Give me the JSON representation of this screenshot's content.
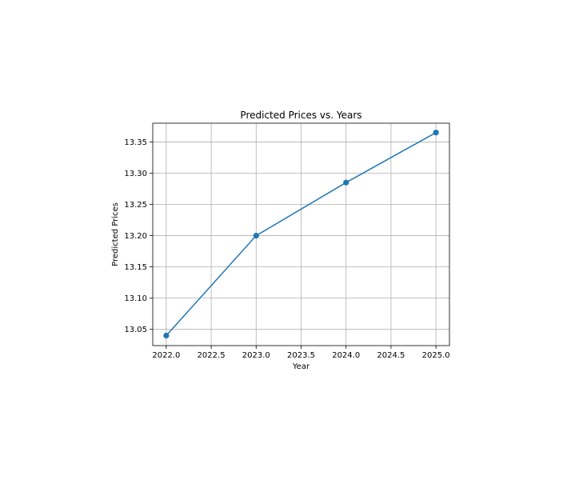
{
  "chart_data": {
    "type": "line",
    "title": "Predicted Prices vs. Years",
    "xlabel": "Year",
    "ylabel": "Predicted Prices",
    "xlim": [
      2021.85,
      2025.15
    ],
    "ylim": [
      13.024,
      13.38
    ],
    "xticks": [
      2022.0,
      2022.5,
      2023.0,
      2023.5,
      2024.0,
      2024.5,
      2025.0
    ],
    "xtick_labels": [
      "2022.0",
      "2022.5",
      "2023.0",
      "2023.5",
      "2024.0",
      "2024.5",
      "2025.0"
    ],
    "yticks": [
      13.05,
      13.1,
      13.15,
      13.2,
      13.25,
      13.3,
      13.35
    ],
    "ytick_labels": [
      "13.05",
      "13.10",
      "13.15",
      "13.20",
      "13.25",
      "13.30",
      "13.35"
    ],
    "grid": true,
    "series": [
      {
        "x": [
          2022,
          2023,
          2024,
          2025
        ],
        "values": [
          13.04,
          13.2,
          13.285,
          13.365
        ],
        "color": "#1f77b4",
        "marker": "circle"
      }
    ]
  }
}
